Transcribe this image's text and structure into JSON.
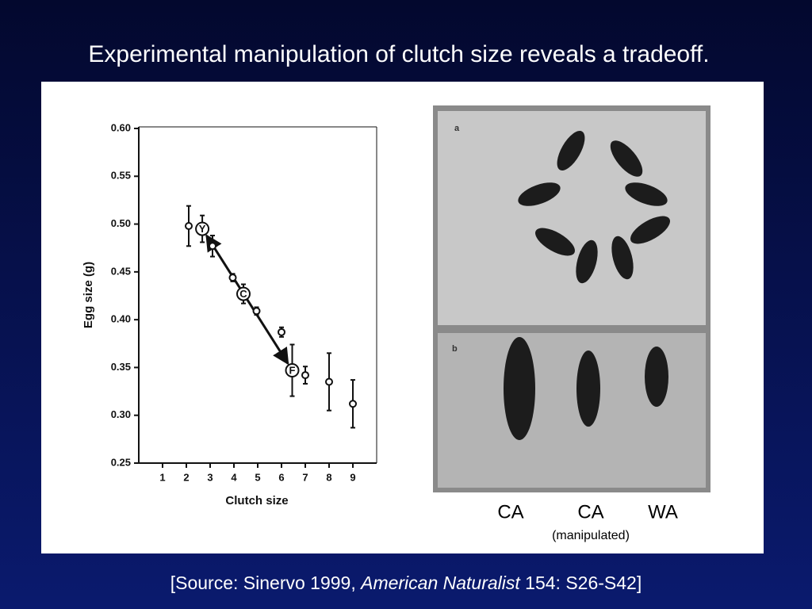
{
  "title": "Experimental manipulation of clutch size reveals a tradeoff.",
  "chart_data": {
    "type": "scatter",
    "x_label": "Clutch size",
    "y_label": "Egg size (g)",
    "x": [
      2.1,
      2.67,
      3.1,
      3.95,
      4.4,
      4.95,
      6.0,
      6.45,
      7.0,
      8.0,
      9.0
    ],
    "y": [
      0.498,
      0.495,
      0.477,
      0.444,
      0.427,
      0.409,
      0.387,
      0.347,
      0.342,
      0.335,
      0.312
    ],
    "errors": [
      0.021,
      0.014,
      0.011,
      0.004,
      0.01,
      0.004,
      0.005,
      0.027,
      0.009,
      0.03,
      0.025
    ],
    "point_labels": [
      null,
      "Y",
      null,
      null,
      "C",
      null,
      null,
      "F",
      null,
      null,
      null
    ],
    "xlim": [
      0,
      10
    ],
    "xticks": [
      1,
      2,
      3,
      4,
      5,
      6,
      7,
      8,
      9
    ],
    "ylim": [
      0.25,
      0.6
    ],
    "yticks": [
      {
        "value": 0.25,
        "label": "0.25"
      },
      {
        "value": 0.3,
        "label": "0.30"
      },
      {
        "value": 0.35,
        "label": "0.35"
      },
      {
        "value": 0.4,
        "label": "0.40"
      },
      {
        "value": 0.45,
        "label": "0.45"
      },
      {
        "value": 0.5,
        "label": "0.50"
      },
      {
        "value": 0.55,
        "label": "0.55"
      },
      {
        "value": 0.6,
        "label": "0.60"
      }
    ],
    "color": "#111111"
  },
  "photo_panels": [
    "a",
    "b"
  ],
  "photo_labels": [
    "CA",
    "CA",
    "WA"
  ],
  "photo_note": "(manipulated)",
  "source": {
    "prefix": "[Source: Sinervo 1999, ",
    "journal": "American Naturalist",
    "suffix": " 154: S26-S42]"
  }
}
